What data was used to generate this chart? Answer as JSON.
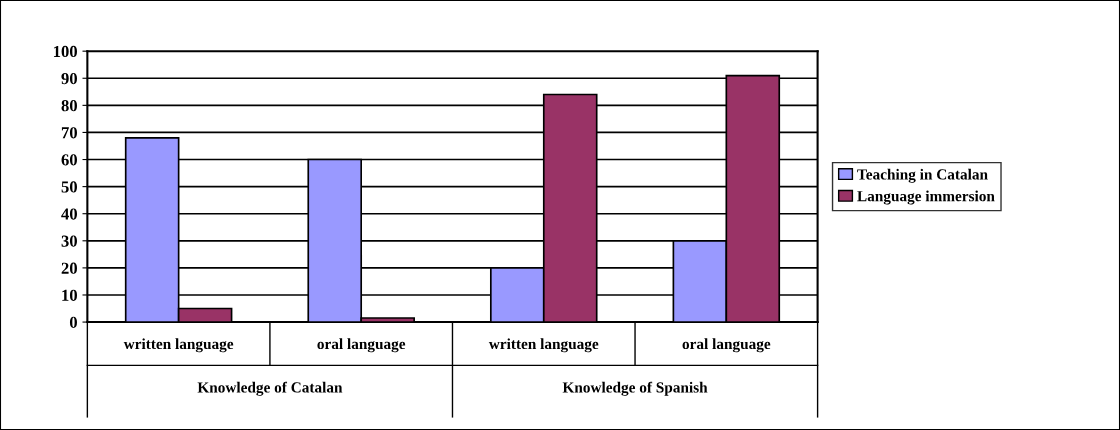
{
  "chart_data": {
    "type": "bar",
    "categories": [
      "written language",
      "oral language",
      "written language",
      "oral language"
    ],
    "series": [
      {
        "name": "Teaching in Catalan",
        "color": "#9999ff",
        "values": [
          68,
          60,
          20,
          30
        ]
      },
      {
        "name": "Language immersion",
        "color": "#993366",
        "values": [
          5,
          1.5,
          84,
          91
        ]
      }
    ],
    "annotations": [
      "Knowledge of Catalan",
      "Knowledge of Spanish"
    ],
    "ylim": [
      0,
      100
    ],
    "yticks": [
      0,
      10,
      20,
      30,
      40,
      50,
      60,
      70,
      80,
      90,
      100
    ],
    "grid": "y",
    "legend": "right"
  }
}
